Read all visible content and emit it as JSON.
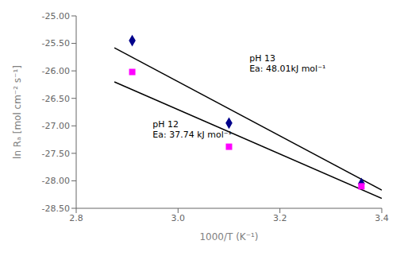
{
  "chart_data": {
    "type": "scatter",
    "xlabel": "1000/T (K⁻¹)",
    "ylabel": "ln Rₐ [mol cm⁻² s⁻¹]",
    "xlim": [
      2.8,
      3.4
    ],
    "ylim": [
      -28.5,
      -25.0
    ],
    "xticks": [
      2.8,
      {
        "value": 3.0,
        "label": "3.0"
      },
      3.2,
      3.4
    ],
    "yticks": [
      {
        "value": -28.5,
        "label": "-28.50"
      },
      {
        "value": -28.0,
        "label": "-28.00"
      },
      {
        "value": -27.5,
        "label": "-27.50"
      },
      {
        "value": -27.0,
        "label": "-27.00"
      },
      {
        "value": -26.5,
        "label": "-26.50"
      },
      {
        "value": -26.0,
        "label": "-26.00"
      },
      {
        "value": -25.5,
        "label": "-25.50"
      },
      {
        "value": -25.0,
        "label": "-25.00"
      }
    ],
    "grid": false,
    "series": [
      {
        "type": "line",
        "color": "#000000",
        "x": [
          2.875,
          3.4
        ],
        "values": [
          -25.58,
          -28.17
        ]
      },
      {
        "type": "line",
        "color": "#000000",
        "x": [
          2.875,
          3.4
        ],
        "values": [
          -26.2,
          -28.32
        ]
      },
      {
        "type": "scatter",
        "color": "#00008B",
        "marker": "diamond",
        "x": [
          2.91,
          3.1,
          3.36
        ],
        "values": [
          -25.45,
          -26.95,
          -28.05
        ]
      },
      {
        "type": "scatter",
        "color": "#FF00FF",
        "marker": "square",
        "x": [
          2.91,
          3.1,
          3.36
        ],
        "values": [
          -26.02,
          -27.38,
          -28.1
        ]
      }
    ],
    "annotations": [
      {
        "text": [
          "pH 13",
          "Ea: 48.01kJ mol⁻¹"
        ],
        "x": 3.14,
        "y": -26.05
      },
      {
        "text": [
          "pH 12",
          "Ea: 37.74 kJ mol⁻¹"
        ],
        "x": 2.95,
        "y": -27.25
      }
    ]
  }
}
